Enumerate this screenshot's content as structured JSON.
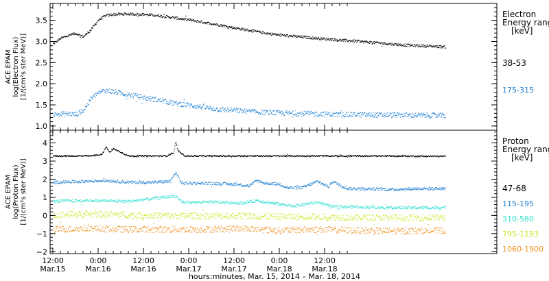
{
  "chart_data": [
    {
      "type": "scatter",
      "panel": "electron",
      "ylabel_lines": [
        "ACE EPAM",
        "log(Electron Flux)",
        "[1/(cm²s ster MeV)]"
      ],
      "ylim": [
        0.9,
        3.9
      ],
      "yticks": [
        "1.0",
        "1.5",
        "2.0",
        "2.5",
        "3.0",
        "3.5"
      ],
      "legend_title": [
        "Electron",
        "Energy range",
        "[keV]"
      ],
      "series": [
        {
          "name": "38-53",
          "color": "#000000",
          "points": [
            [
              0,
              2.95
            ],
            [
              2,
              3.08
            ],
            [
              4,
              3.15
            ],
            [
              6,
              3.2
            ],
            [
              8,
              3.12
            ],
            [
              10,
              3.28
            ],
            [
              12,
              3.52
            ],
            [
              14,
              3.62
            ],
            [
              16,
              3.65
            ],
            [
              20,
              3.66
            ],
            [
              24,
              3.65
            ],
            [
              28,
              3.62
            ],
            [
              32,
              3.57
            ],
            [
              36,
              3.52
            ],
            [
              40,
              3.46
            ],
            [
              44,
              3.4
            ],
            [
              48,
              3.33
            ],
            [
              52,
              3.27
            ],
            [
              56,
              3.21
            ],
            [
              60,
              3.16
            ],
            [
              64,
              3.13
            ],
            [
              68,
              3.1
            ],
            [
              72,
              3.07
            ],
            [
              76,
              3.04
            ],
            [
              80,
              3.02
            ],
            [
              84,
              2.99
            ],
            [
              88,
              2.96
            ],
            [
              92,
              2.93
            ],
            [
              96,
              2.91
            ],
            [
              100,
              2.9
            ],
            [
              104,
              2.88
            ]
          ]
        },
        {
          "name": "175-315",
          "color": "#1c7fd4",
          "points": [
            [
              0,
              1.28
            ],
            [
              4,
              1.3
            ],
            [
              6,
              1.28
            ],
            [
              8,
              1.37
            ],
            [
              10,
              1.65
            ],
            [
              12,
              1.8
            ],
            [
              14,
              1.85
            ],
            [
              16,
              1.82
            ],
            [
              20,
              1.75
            ],
            [
              24,
              1.68
            ],
            [
              28,
              1.62
            ],
            [
              32,
              1.55
            ],
            [
              36,
              1.5
            ],
            [
              40,
              1.45
            ],
            [
              44,
              1.4
            ],
            [
              48,
              1.38
            ],
            [
              52,
              1.35
            ],
            [
              56,
              1.33
            ],
            [
              60,
              1.32
            ],
            [
              64,
              1.3
            ],
            [
              68,
              1.3
            ],
            [
              72,
              1.29
            ],
            [
              76,
              1.28
            ],
            [
              80,
              1.28
            ],
            [
              84,
              1.27
            ],
            [
              88,
              1.27
            ],
            [
              92,
              1.27
            ],
            [
              96,
              1.26
            ],
            [
              100,
              1.26
            ],
            [
              104,
              1.25
            ]
          ]
        }
      ]
    },
    {
      "type": "scatter",
      "panel": "proton",
      "ylabel_lines": [
        "ACE EPAM",
        "log(Proton Flux)",
        "[1/(cm²s ster MeV)]"
      ],
      "ylim": [
        -2.1,
        4.7
      ],
      "yticks": [
        "−2",
        "−1",
        "0",
        "1",
        "2",
        "3",
        "4"
      ],
      "legend_title": [
        "Proton",
        "Energy range",
        "[keV]"
      ],
      "series": [
        {
          "name": "47-68",
          "color": "#000000",
          "points": [
            [
              0,
              3.3
            ],
            [
              10,
              3.3
            ],
            [
              13,
              3.4
            ],
            [
              14,
              3.8
            ],
            [
              15,
              3.5
            ],
            [
              16,
              3.7
            ],
            [
              18,
              3.5
            ],
            [
              20,
              3.3
            ],
            [
              30,
              3.3
            ],
            [
              32,
              3.5
            ],
            [
              32.5,
              4.1
            ],
            [
              33,
              3.6
            ],
            [
              35,
              3.3
            ],
            [
              50,
              3.3
            ],
            [
              70,
              3.3
            ],
            [
              90,
              3.3
            ],
            [
              104,
              3.28
            ]
          ]
        },
        {
          "name": "115-195",
          "color": "#1c7fd4",
          "points": [
            [
              0,
              1.85
            ],
            [
              8,
              1.9
            ],
            [
              14,
              1.95
            ],
            [
              20,
              1.85
            ],
            [
              26,
              1.85
            ],
            [
              31,
              1.9
            ],
            [
              32.5,
              2.4
            ],
            [
              34,
              1.8
            ],
            [
              40,
              1.8
            ],
            [
              48,
              1.75
            ],
            [
              52,
              1.65
            ],
            [
              54,
              1.95
            ],
            [
              56,
              1.8
            ],
            [
              60,
              1.75
            ],
            [
              62,
              1.55
            ],
            [
              66,
              1.55
            ],
            [
              70,
              1.9
            ],
            [
              73,
              1.6
            ],
            [
              74,
              1.9
            ],
            [
              78,
              1.5
            ],
            [
              82,
              1.5
            ],
            [
              90,
              1.45
            ],
            [
              96,
              1.5
            ],
            [
              104,
              1.5
            ]
          ]
        },
        {
          "name": "310-580",
          "color": "#2ee0d0",
          "points": [
            [
              0,
              0.8
            ],
            [
              10,
              0.85
            ],
            [
              20,
              0.8
            ],
            [
              32.5,
              1.1
            ],
            [
              34,
              0.75
            ],
            [
              44,
              0.75
            ],
            [
              50,
              0.7
            ],
            [
              54,
              0.85
            ],
            [
              58,
              0.7
            ],
            [
              64,
              0.55
            ],
            [
              70,
              0.75
            ],
            [
              74,
              0.5
            ],
            [
              80,
              0.5
            ],
            [
              90,
              0.45
            ],
            [
              104,
              0.45
            ]
          ]
        },
        {
          "name": "795-1193",
          "color": "#c8e61e",
          "points": [
            [
              0,
              0.05
            ],
            [
              10,
              0.1
            ],
            [
              20,
              0.05
            ],
            [
              30,
              0.0
            ],
            [
              40,
              0.0
            ],
            [
              50,
              0.0
            ],
            [
              60,
              -0.05
            ],
            [
              70,
              -0.05
            ],
            [
              80,
              -0.1
            ],
            [
              90,
              -0.1
            ],
            [
              104,
              -0.1
            ]
          ]
        },
        {
          "name": "1060-1900",
          "color": "#f0901e",
          "points": [
            [
              0,
              -0.75
            ],
            [
              10,
              -0.7
            ],
            [
              20,
              -0.75
            ],
            [
              30,
              -0.75
            ],
            [
              40,
              -0.75
            ],
            [
              50,
              -0.7
            ],
            [
              60,
              -0.8
            ],
            [
              70,
              -0.75
            ],
            [
              80,
              -0.8
            ],
            [
              90,
              -0.85
            ],
            [
              104,
              -0.8
            ]
          ]
        }
      ]
    }
  ],
  "x_axis": {
    "ticks": [
      {
        "hours": 0,
        "time": "12:00",
        "date": "Mar.15"
      },
      {
        "hours": 12,
        "time": "0:00",
        "date": "Mar.16"
      },
      {
        "hours": 24,
        "time": "12:00",
        "date": "Mar.16"
      },
      {
        "hours": 36,
        "time": "0:00",
        "date": "Mar.17"
      },
      {
        "hours": 48,
        "time": "12:00",
        "date": "Mar.17"
      },
      {
        "hours": 60,
        "time": "0:00",
        "date": "Mar.18"
      },
      {
        "hours": 72,
        "time": "12:00",
        "date": "Mar.18"
      }
    ],
    "xlabel": "hours:minutes, Mar. 15, 2014 – Mar. 18, 2014"
  }
}
